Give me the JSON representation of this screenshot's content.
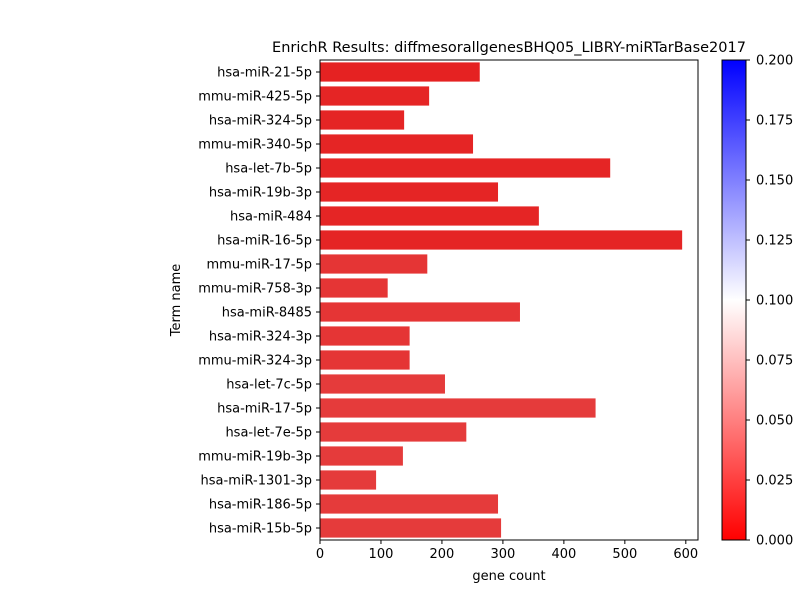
{
  "chart_data": {
    "type": "bar",
    "orientation": "horizontal",
    "title": "EnrichR Results: diffmesorallgenesBHQ05_LIBRY-miRTarBase2017",
    "xlabel": "gene count",
    "ylabel": "Term name",
    "xlim": [
      0,
      620
    ],
    "x_ticks": [
      0,
      100,
      200,
      300,
      400,
      500,
      600
    ],
    "categories": [
      "hsa-miR-21-5p",
      "mmu-miR-425-5p",
      "hsa-miR-324-5p",
      "mmu-miR-340-5p",
      "hsa-let-7b-5p",
      "hsa-miR-19b-3p",
      "hsa-miR-484",
      "hsa-miR-16-5p",
      "mmu-miR-17-5p",
      "mmu-miR-758-3p",
      "hsa-miR-8485",
      "hsa-miR-324-3p",
      "mmu-miR-324-3p",
      "hsa-let-7c-5p",
      "hsa-miR-17-5p",
      "hsa-let-7e-5p",
      "mmu-miR-19b-3p",
      "hsa-miR-1301-3p",
      "hsa-miR-186-5p",
      "hsa-miR-15b-5p"
    ],
    "values": [
      262,
      179,
      138,
      251,
      476,
      292,
      359,
      594,
      176,
      111,
      328,
      147,
      147,
      205,
      452,
      240,
      136,
      92,
      292,
      297
    ],
    "bar_colors": [
      "#e52222",
      "#e52525",
      "#e52525",
      "#e52525",
      "#e52525",
      "#e52525",
      "#e52525",
      "#e52525",
      "#e53535",
      "#e53535",
      "#e53535",
      "#e53535",
      "#e53535",
      "#e53b3b",
      "#e53b3b",
      "#e53b3b",
      "#e53b3b",
      "#e53b3b",
      "#e53b3b",
      "#e53b3b"
    ],
    "colorbar": {
      "range": [
        0,
        0.2
      ],
      "ticks": [
        "0.000",
        "0.025",
        "0.050",
        "0.075",
        "0.100",
        "0.125",
        "0.150",
        "0.175",
        "0.200"
      ],
      "colors": [
        "#ff0000",
        "#ffffff",
        "#0000ff"
      ]
    },
    "grid": false
  }
}
